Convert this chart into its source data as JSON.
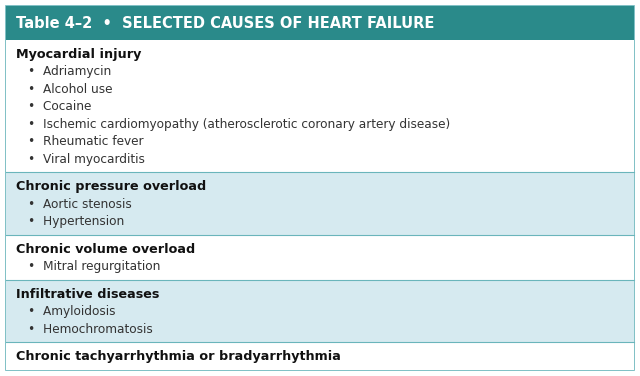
{
  "title": "Table 4–2  •  SELECTED CAUSES OF HEART FAILURE",
  "header_bg": "#2a8a8a",
  "header_text_color": "#ffffff",
  "header_fontsize": 10.5,
  "row_fontsize": 9.2,
  "sections": [
    {
      "heading": "Myocardial injury",
      "items": [
        "Adriamycin",
        "Alcohol use",
        "Cocaine",
        "Ischemic cardiomyopathy (atherosclerotic coronary artery disease)",
        "Rheumatic fever",
        "Viral myocarditis"
      ],
      "bg": "#ffffff"
    },
    {
      "heading": "Chronic pressure overload",
      "items": [
        "Aortic stenosis",
        "Hypertension"
      ],
      "bg": "#d6eaf0"
    },
    {
      "heading": "Chronic volume overload",
      "items": [
        "Mitral regurgitation"
      ],
      "bg": "#ffffff"
    },
    {
      "heading": "Infiltrative diseases",
      "items": [
        "Amyloidosis",
        "Hemochromatosis"
      ],
      "bg": "#d6eaf0"
    },
    {
      "heading": "Chronic tachyarrhythmia or bradyarrhythmia",
      "items": [],
      "bg": "#ffffff"
    }
  ],
  "border_color": "#6ab5bb",
  "divider_color": "#6ab5bb",
  "text_color": "#333333",
  "heading_color": "#111111",
  "bullet": "•"
}
